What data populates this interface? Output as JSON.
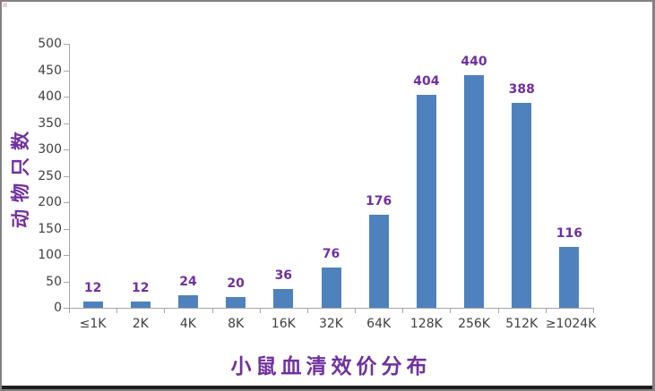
{
  "frame": {
    "border_color": "#828282",
    "bottom_strip_color": "#1f1f1f",
    "artifact_color": "#f2cdcd"
  },
  "chart_data": {
    "type": "bar",
    "title": "小鼠血清效价分布",
    "xlabel": "",
    "ylabel": "动物只数",
    "categories": [
      "≤1K",
      "2K",
      "4K",
      "8K",
      "16K",
      "32K",
      "64K",
      "128K",
      "256K",
      "512K",
      "≥1024K"
    ],
    "values": [
      12,
      12,
      24,
      20,
      36,
      76,
      176,
      404,
      440,
      388,
      116
    ],
    "ylim": [
      0,
      500
    ],
    "y_ticks": [
      0,
      50,
      100,
      150,
      200,
      250,
      300,
      350,
      400,
      450,
      500
    ],
    "grid": false,
    "legend_position": "none",
    "data_labels": true,
    "colors": {
      "bar": "#4f81bd",
      "data_label": "#7030a0",
      "axis": "#a6a6a6",
      "tick_label": "#3f3f3f"
    }
  }
}
